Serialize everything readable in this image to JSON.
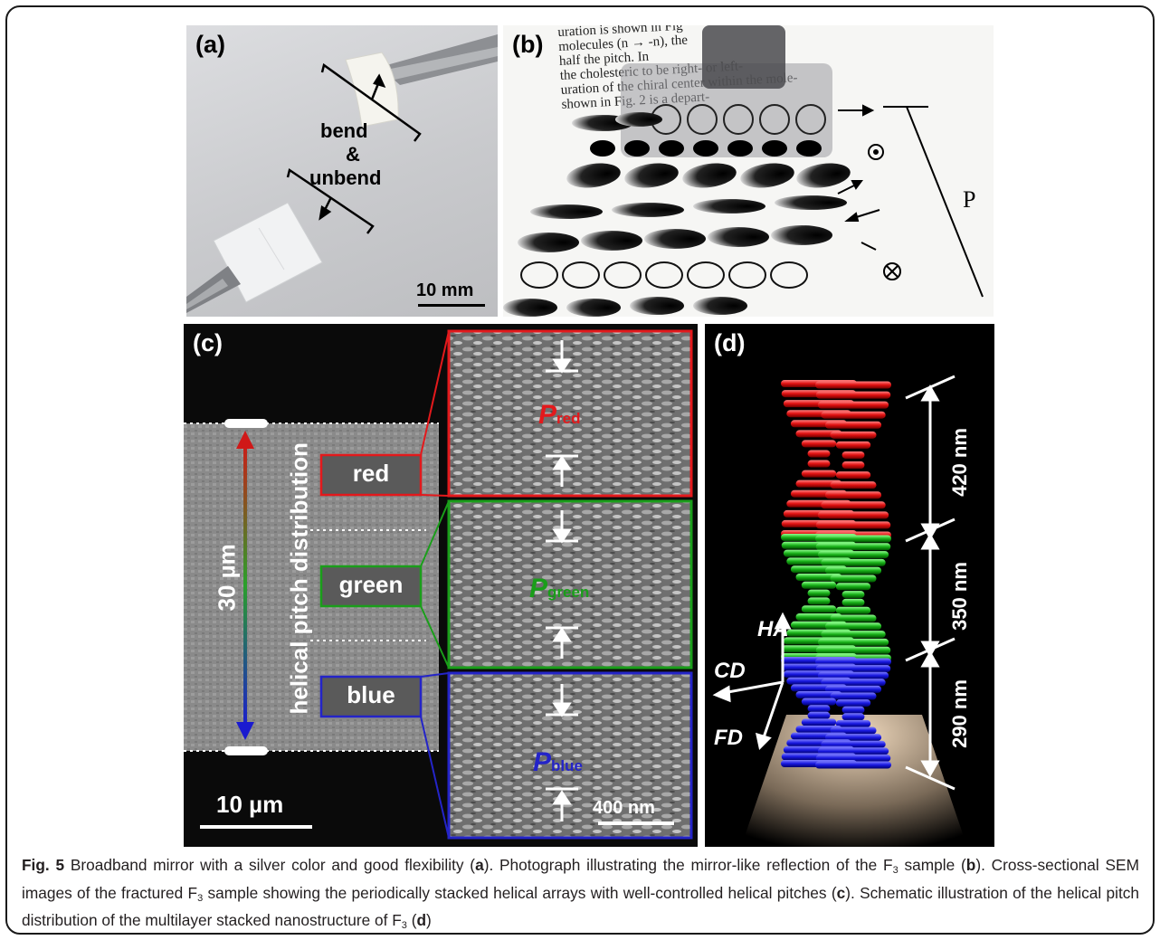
{
  "figure": {
    "panels": {
      "a": {
        "label": "(a)",
        "annotation_line1": "bend",
        "annotation_line2": "&",
        "annotation_line3": "unbend",
        "scale_bar": "10 mm"
      },
      "b": {
        "label": "(b)",
        "background_text": [
          "uration is shown in Fig",
          "molecules (n →  -n), the",
          "half the pitch. In",
          "the cholesteric to be right- or left-",
          "uration of the chiral center within the mole-",
          "shown in Fig. 2 is a depart-"
        ],
        "pitch_symbol": "P"
      },
      "c": {
        "label": "(c)",
        "vertical_label": "helical pitch distribution",
        "thickness_label": "30 µm",
        "scale_bar_left": "10 µm",
        "scale_bar_inset": "400 nm",
        "regions": [
          {
            "name": "red",
            "pitch_symbol": "P",
            "pitch_sub": "red",
            "color": "#e3191c"
          },
          {
            "name": "green",
            "pitch_symbol": "P",
            "pitch_sub": "green",
            "color": "#1a9e1a"
          },
          {
            "name": "blue",
            "pitch_symbol": "P",
            "pitch_sub": "blue",
            "color": "#2424c8"
          }
        ]
      },
      "d": {
        "label": "(d)",
        "axis_ha": "HA",
        "axis_cd": "CD",
        "axis_fd": "FD",
        "pitches": [
          "420 nm",
          "350 nm",
          "290 nm"
        ]
      }
    },
    "caption": {
      "fig_label": "Fig. 5",
      "text_1": " Broadband mirror with a silver color and good flexibility (",
      "ref_a": "a",
      "text_2": "). Photograph illustrating the mirror-like reflection of the F",
      "sub_3a": "3",
      "text_3": " sample (",
      "ref_b": "b",
      "text_4": "). Cross-sectional SEM images of the fractured F",
      "sub_3b": "3",
      "text_5": " sample showing the periodically stacked helical arrays with well-controlled helical pitches (",
      "ref_c": "c",
      "text_6": "). Schematic illustration of the helical pitch distribution of the multilayer stacked nanostructure of F",
      "sub_3c": "3",
      "text_7": " (",
      "ref_d": "d",
      "text_8": ")"
    }
  }
}
